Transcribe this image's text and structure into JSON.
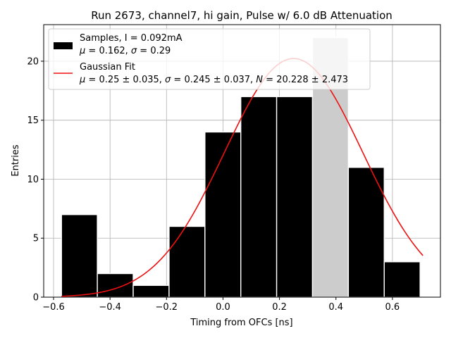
{
  "chart_data": {
    "type": "bar",
    "title": "Run 2673, channel7, hi gain, Pulse w/ 6.0 dB Attenuation",
    "xlabel": "Timing from OFCs [ns]",
    "ylabel": "Entries",
    "xlim": [
      -0.635,
      0.77
    ],
    "ylim": [
      0,
      23.1
    ],
    "xticks": [
      -0.6,
      -0.4,
      -0.2,
      0.0,
      0.2,
      0.4,
      0.6
    ],
    "xtick_labels": [
      "−0.6",
      "−0.4",
      "−0.2",
      "0.0",
      "0.2",
      "0.4",
      "0.6"
    ],
    "yticks": [
      0,
      5,
      10,
      15,
      20
    ],
    "ytick_labels": [
      "0",
      "5",
      "10",
      "15",
      "20"
    ],
    "grid": true,
    "legend_position": "top-left",
    "histogram": {
      "bin_edges": [
        -0.572,
        -0.445,
        -0.318,
        -0.191,
        -0.064,
        0.063,
        0.19,
        0.317,
        0.444,
        0.571,
        0.698
      ],
      "counts": [
        7,
        2,
        1,
        6,
        14,
        17,
        17,
        22,
        11,
        3
      ],
      "fill_color": "#000000",
      "highlight_bin_index": 7,
      "highlight_color": "#cccccc",
      "edge_color": "#ffffff"
    },
    "fit_curve": {
      "mu": 0.25,
      "sigma": 0.245,
      "peak": 20.228,
      "x_range": [
        -0.572,
        0.708
      ],
      "color": "#ee1111"
    },
    "legend": {
      "samples_line1": "Samples, I = 0.092mA",
      "samples_line2_mu": "μ",
      "samples_line2_rest": " = 0.162, ",
      "samples_line2_sigma": "σ",
      "samples_line2_end": " = 0.29",
      "fit_line1": "Gaussian Fit",
      "fit_line2_mu": "μ",
      "fit_line2_a": " = 0.25 ± 0.035, ",
      "fit_line2_sigma": "σ",
      "fit_line2_b": " = 0.245 ± 0.037, ",
      "fit_line2_N": "N",
      "fit_line2_c": " = 20.228 ± 2.473"
    }
  }
}
